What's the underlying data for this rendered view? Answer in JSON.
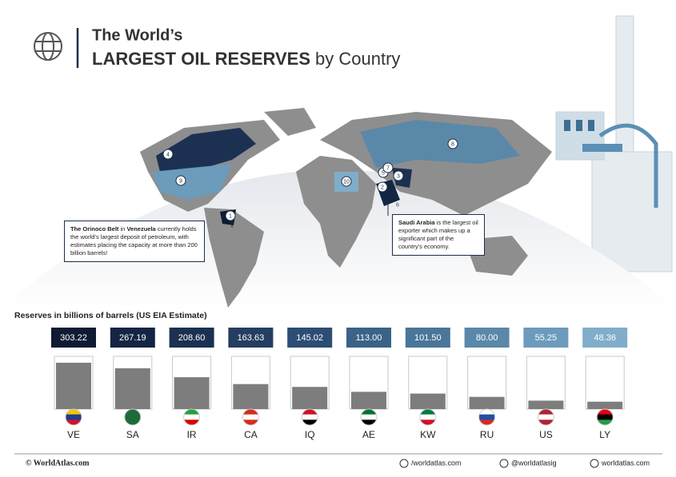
{
  "chart_data": {
    "type": "bar",
    "title_top": "The World’s",
    "title_bold": "LARGEST OIL RESERVES",
    "title_rest": "by Country",
    "axis_label": "Reserves in billions of barrels (US EIA Estimate)",
    "categories": [
      "VE",
      "SA",
      "IR",
      "CA",
      "IQ",
      "AE",
      "KW",
      "RU",
      "US",
      "LY"
    ],
    "values": [
      303.22,
      267.19,
      208.6,
      163.63,
      145.02,
      113.0,
      101.5,
      80.0,
      55.25,
      48.36
    ],
    "value_labels": [
      "303.22",
      "267.19",
      "208.60",
      "163.63",
      "145.02",
      "113.00",
      "101.50",
      "80.00",
      "55.25",
      "48.36"
    ],
    "colors": [
      "#0e1b33",
      "#142544",
      "#1c3152",
      "#243e62",
      "#2d4d74",
      "#3a6387",
      "#4a7699",
      "#5a88a9",
      "#6c9bbb",
      "#80adc9"
    ],
    "map_labels": [
      "1",
      "2",
      "3",
      "4",
      "5",
      "6",
      "7",
      "8",
      "9",
      "10"
    ],
    "annotations": [
      {
        "parts": [
          "The Orinoco Belt",
          " in ",
          "Venezuela",
          " currently holds the world’s largest deposit of petroleum, with estimates placing the capacity at more than 200 billion barrels!"
        ]
      },
      {
        "parts": [
          "Saudi Arabia",
          " is the largest oil exporter which makes up a significant part of the country’s economy."
        ]
      }
    ],
    "footer": [
      "© WorldAtlas.com",
      "/worldatlas.com",
      "@worldatlasig",
      "worldatlas.com"
    ]
  }
}
